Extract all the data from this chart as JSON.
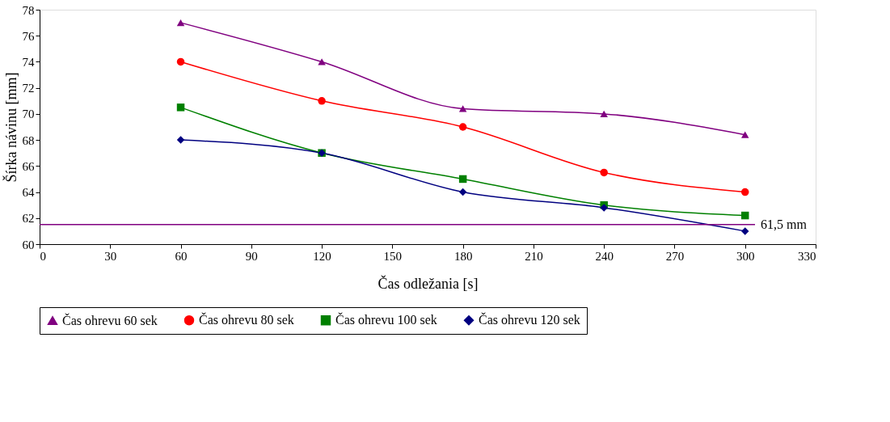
{
  "chart_data": {
    "type": "line",
    "xlabel": "Čas odležania [s]",
    "ylabel": "Šírka návinu [mm]",
    "x": [
      60,
      120,
      180,
      240,
      300
    ],
    "series": [
      {
        "name": "Čas ohrevu 60 sek",
        "color": "#800080",
        "marker": "triangle",
        "values": [
          77,
          74,
          70.4,
          70,
          68.4
        ]
      },
      {
        "name": "Čas ohrevu 80 sek",
        "color": "#ff0000",
        "marker": "circle",
        "values": [
          74,
          71,
          69,
          65.5,
          64
        ]
      },
      {
        "name": "Čas ohrevu 100 sek",
        "color": "#008000",
        "marker": "square",
        "values": [
          70.5,
          67,
          65,
          63,
          62.2
        ]
      },
      {
        "name": "Čas ohrevu 120 sek",
        "color": "#000080",
        "marker": "diamond",
        "values": [
          68,
          67,
          64,
          62.8,
          61
        ]
      }
    ],
    "xlim": [
      0,
      330
    ],
    "xticks": [
      0,
      30,
      60,
      90,
      120,
      150,
      180,
      210,
      240,
      270,
      300,
      330
    ],
    "ylim": [
      60,
      78
    ],
    "yticks": [
      60,
      62,
      64,
      66,
      68,
      70,
      72,
      74,
      76,
      78
    ],
    "ref_lines": [
      {
        "axis": "y",
        "value": 61.5,
        "label": "61,5 mm",
        "color": "#800080"
      }
    ],
    "grid": false,
    "legend": "bottom",
    "line_style": "solid"
  }
}
